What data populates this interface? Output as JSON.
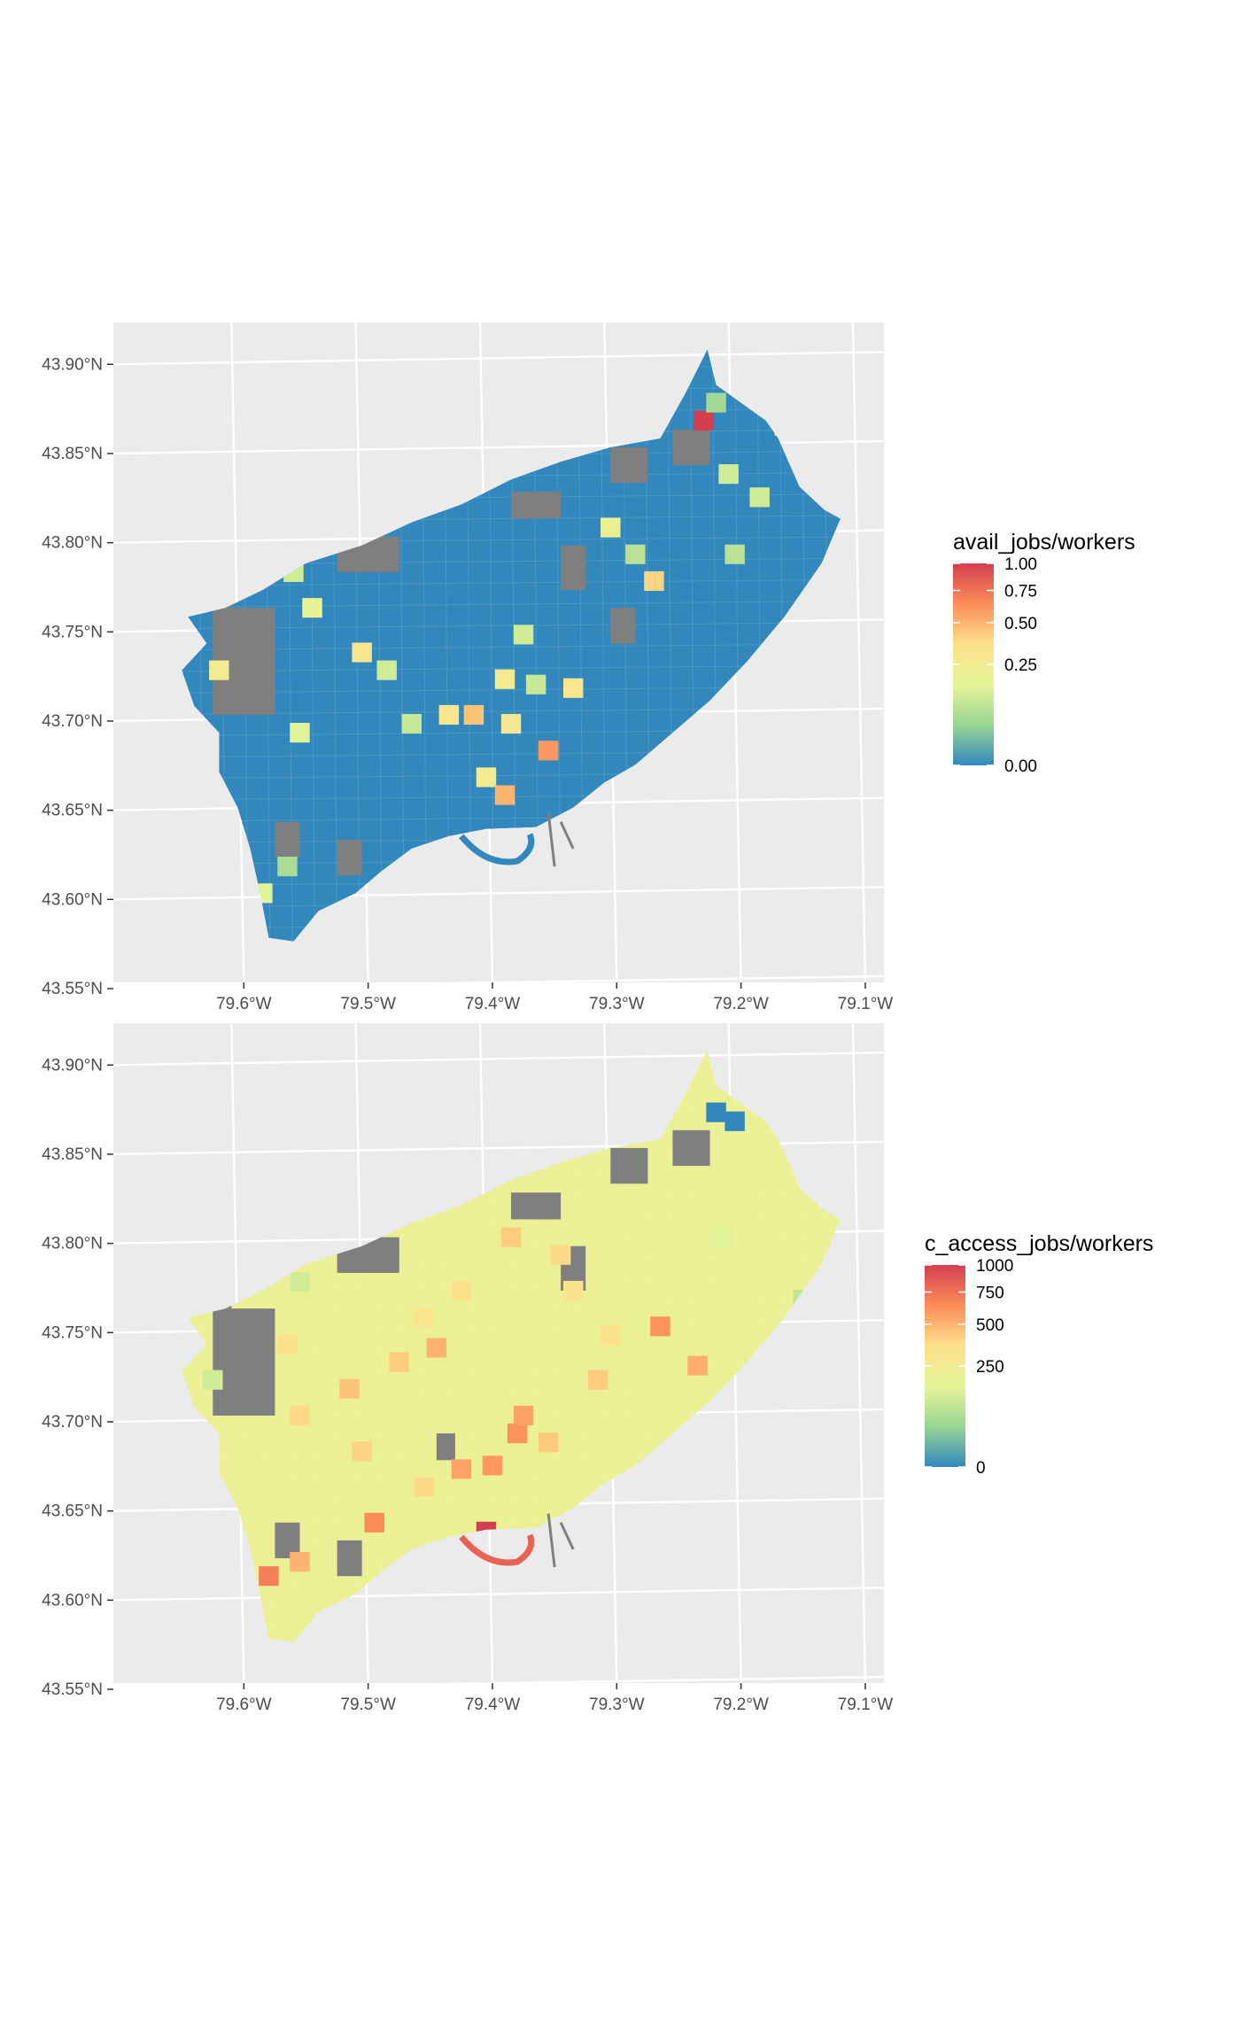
{
  "chart_data": [
    {
      "type": "heatmap",
      "subtype": "choropleth-map",
      "region": "Toronto",
      "xlim": [
        -79.7,
        -79.08
      ],
      "ylim": [
        43.55,
        43.92
      ],
      "x_ticks": [
        -79.6,
        -79.5,
        -79.4,
        -79.3,
        -79.2,
        -79.1
      ],
      "x_tick_labels": [
        "79.6°W",
        "79.5°W",
        "79.4°W",
        "79.3°W",
        "79.2°W",
        "79.1°W"
      ],
      "y_ticks": [
        43.55,
        43.6,
        43.65,
        43.7,
        43.75,
        43.8,
        43.85,
        43.9
      ],
      "y_tick_labels": [
        "43.55°N",
        "43.60°N",
        "43.65°N",
        "43.70°N",
        "43.75°N",
        "43.80°N",
        "43.85°N",
        "43.90°N"
      ],
      "grid": true,
      "legend": {
        "title": "avail_jobs/workers",
        "position": "right",
        "range": [
          0,
          1
        ],
        "breaks": [
          0,
          0.25,
          0.5,
          0.75,
          1
        ],
        "break_labels": [
          "0.00",
          "0.25",
          "0.50",
          "0.75",
          "1.00"
        ],
        "scale": "sqrt",
        "palette": [
          "#3288bd",
          "#99d594",
          "#e6f598",
          "#fee08b",
          "#fc8d59",
          "#d53e4f"
        ]
      },
      "na_color": "#7f7f7f",
      "base_value": 0.0,
      "highlights": [
        {
          "x": -79.225,
          "y": 43.865,
          "value": 1.0
        },
        {
          "x": -79.215,
          "y": 43.875,
          "value": 0.05
        },
        {
          "x": -79.205,
          "y": 43.835,
          "value": 0.12
        },
        {
          "x": -79.16,
          "y": 43.862,
          "value": 0.22
        },
        {
          "x": -79.18,
          "y": 43.822,
          "value": 0.12
        },
        {
          "x": -79.3,
          "y": 43.805,
          "value": 0.2
        },
        {
          "x": -79.265,
          "y": 43.775,
          "value": 0.4
        },
        {
          "x": -79.28,
          "y": 43.79,
          "value": 0.08
        },
        {
          "x": -79.2,
          "y": 43.79,
          "value": 0.08
        },
        {
          "x": -79.37,
          "y": 43.745,
          "value": 0.12
        },
        {
          "x": -79.385,
          "y": 43.72,
          "value": 0.25
        },
        {
          "x": -79.36,
          "y": 43.717,
          "value": 0.1
        },
        {
          "x": -79.33,
          "y": 43.715,
          "value": 0.32
        },
        {
          "x": -79.41,
          "y": 43.7,
          "value": 0.45
        },
        {
          "x": -79.43,
          "y": 43.7,
          "value": 0.3
        },
        {
          "x": -79.38,
          "y": 43.695,
          "value": 0.28
        },
        {
          "x": -79.48,
          "y": 43.725,
          "value": 0.12
        },
        {
          "x": -79.5,
          "y": 43.735,
          "value": 0.3
        },
        {
          "x": -79.55,
          "y": 43.69,
          "value": 0.15
        },
        {
          "x": -79.46,
          "y": 43.695,
          "value": 0.1
        },
        {
          "x": -79.35,
          "y": 43.68,
          "value": 0.6
        },
        {
          "x": -79.4,
          "y": 43.665,
          "value": 0.25
        },
        {
          "x": -79.385,
          "y": 43.655,
          "value": 0.5
        },
        {
          "x": -79.56,
          "y": 43.615,
          "value": 0.06
        },
        {
          "x": -79.58,
          "y": 43.6,
          "value": 0.15
        },
        {
          "x": -79.615,
          "y": 43.725,
          "value": 0.25
        },
        {
          "x": -79.555,
          "y": 43.78,
          "value": 0.12
        },
        {
          "x": -79.54,
          "y": 43.76,
          "value": 0.18
        }
      ],
      "na_areas": [
        {
          "x": -79.62,
          "y": 43.7,
          "w": 0.05,
          "h": 0.06
        },
        {
          "x": -79.635,
          "y": 43.76,
          "w": 0.03,
          "h": 0.02
        },
        {
          "x": -79.52,
          "y": 43.78,
          "w": 0.05,
          "h": 0.02
        },
        {
          "x": -79.38,
          "y": 43.81,
          "w": 0.04,
          "h": 0.015
        },
        {
          "x": -79.3,
          "y": 43.83,
          "w": 0.03,
          "h": 0.02
        },
        {
          "x": -79.25,
          "y": 43.84,
          "w": 0.03,
          "h": 0.02
        },
        {
          "x": -79.34,
          "y": 43.77,
          "w": 0.02,
          "h": 0.025
        },
        {
          "x": -79.3,
          "y": 43.74,
          "w": 0.02,
          "h": 0.02
        },
        {
          "x": -79.57,
          "y": 43.62,
          "w": 0.02,
          "h": 0.02
        },
        {
          "x": -79.52,
          "y": 43.61,
          "w": 0.02,
          "h": 0.02
        }
      ]
    },
    {
      "type": "heatmap",
      "subtype": "choropleth-map",
      "region": "Toronto",
      "xlim": [
        -79.7,
        -79.08
      ],
      "ylim": [
        43.55,
        43.92
      ],
      "x_ticks": [
        -79.6,
        -79.5,
        -79.4,
        -79.3,
        -79.2,
        -79.1
      ],
      "x_tick_labels": [
        "79.6°W",
        "79.5°W",
        "79.4°W",
        "79.3°W",
        "79.2°W",
        "79.1°W"
      ],
      "y_ticks": [
        43.55,
        43.6,
        43.65,
        43.7,
        43.75,
        43.8,
        43.85,
        43.9
      ],
      "y_tick_labels": [
        "43.55°N",
        "43.60°N",
        "43.65°N",
        "43.70°N",
        "43.75°N",
        "43.80°N",
        "43.85°N",
        "43.90°N"
      ],
      "grid": true,
      "legend": {
        "title": "c_access_jobs/workers",
        "position": "right",
        "range": [
          0,
          1000
        ],
        "breaks": [
          0,
          250,
          500,
          750,
          1000
        ],
        "break_labels": [
          "0",
          "250",
          "500",
          "750",
          "1000"
        ],
        "scale": "sqrt",
        "palette": [
          "#3288bd",
          "#99d594",
          "#e6f598",
          "#fee08b",
          "#fc8d59",
          "#d53e4f"
        ]
      },
      "na_color": "#7f7f7f",
      "base_value": 200,
      "highlights": [
        {
          "x": -79.215,
          "y": 43.87,
          "value": 0
        },
        {
          "x": -79.2,
          "y": 43.865,
          "value": 0
        },
        {
          "x": -79.145,
          "y": 43.765,
          "value": 90
        },
        {
          "x": -79.62,
          "y": 43.72,
          "value": 120
        },
        {
          "x": -79.4,
          "y": 43.635,
          "value": 1000
        },
        {
          "x": -79.39,
          "y": 43.625,
          "value": 780
        },
        {
          "x": -79.575,
          "y": 43.61,
          "value": 700
        },
        {
          "x": -79.55,
          "y": 43.618,
          "value": 500
        },
        {
          "x": -79.49,
          "y": 43.64,
          "value": 650
        },
        {
          "x": -79.42,
          "y": 43.67,
          "value": 560
        },
        {
          "x": -79.395,
          "y": 43.672,
          "value": 600
        },
        {
          "x": -79.375,
          "y": 43.69,
          "value": 620
        },
        {
          "x": -79.37,
          "y": 43.7,
          "value": 560
        },
        {
          "x": -79.35,
          "y": 43.685,
          "value": 430
        },
        {
          "x": -79.26,
          "y": 43.75,
          "value": 620
        },
        {
          "x": -79.23,
          "y": 43.728,
          "value": 520
        },
        {
          "x": -79.44,
          "y": 43.738,
          "value": 500
        },
        {
          "x": -79.47,
          "y": 43.73,
          "value": 420
        },
        {
          "x": -79.51,
          "y": 43.715,
          "value": 450
        },
        {
          "x": -79.55,
          "y": 43.7,
          "value": 380
        },
        {
          "x": -79.5,
          "y": 43.68,
          "value": 400
        },
        {
          "x": -79.34,
          "y": 43.79,
          "value": 380
        },
        {
          "x": -79.38,
          "y": 43.8,
          "value": 420
        },
        {
          "x": -79.42,
          "y": 43.77,
          "value": 360
        },
        {
          "x": -79.3,
          "y": 43.745,
          "value": 340
        },
        {
          "x": -79.33,
          "y": 43.77,
          "value": 330
        },
        {
          "x": -79.31,
          "y": 43.72,
          "value": 420
        },
        {
          "x": -79.45,
          "y": 43.66,
          "value": 380
        },
        {
          "x": -79.56,
          "y": 43.74,
          "value": 360
        },
        {
          "x": -79.45,
          "y": 43.755,
          "value": 310
        },
        {
          "x": -79.21,
          "y": 43.8,
          "value": 150
        },
        {
          "x": -79.55,
          "y": 43.775,
          "value": 120
        }
      ],
      "na_areas": [
        {
          "x": -79.62,
          "y": 43.7,
          "w": 0.05,
          "h": 0.06
        },
        {
          "x": -79.635,
          "y": 43.76,
          "w": 0.03,
          "h": 0.02
        },
        {
          "x": -79.52,
          "y": 43.78,
          "w": 0.05,
          "h": 0.02
        },
        {
          "x": -79.38,
          "y": 43.81,
          "w": 0.04,
          "h": 0.015
        },
        {
          "x": -79.3,
          "y": 43.83,
          "w": 0.03,
          "h": 0.02
        },
        {
          "x": -79.25,
          "y": 43.84,
          "w": 0.03,
          "h": 0.02
        },
        {
          "x": -79.34,
          "y": 43.77,
          "w": 0.02,
          "h": 0.025
        },
        {
          "x": -79.57,
          "y": 43.62,
          "w": 0.02,
          "h": 0.02
        },
        {
          "x": -79.52,
          "y": 43.61,
          "w": 0.02,
          "h": 0.02
        },
        {
          "x": -79.44,
          "y": 43.675,
          "w": 0.015,
          "h": 0.015
        }
      ]
    }
  ]
}
